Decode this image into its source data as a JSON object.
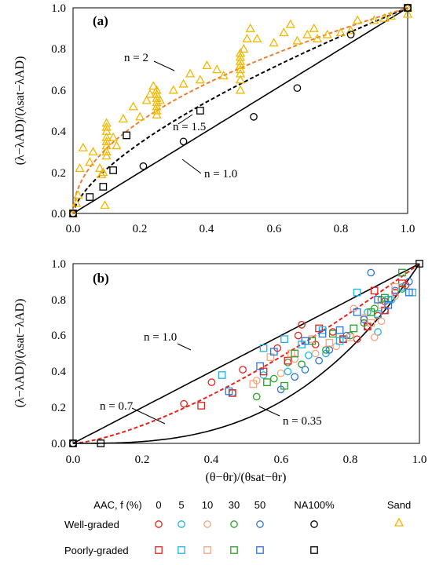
{
  "chart_data": [
    {
      "panel": "(a)",
      "type": "scatter",
      "ylabel": "(λ−λAD)/(λsat−λAD)",
      "xlim": [
        0,
        1
      ],
      "ylim": [
        0,
        1
      ],
      "xticks": [
        "0.0",
        "0.2",
        "0.4",
        "0.6",
        "0.8",
        "1.0"
      ],
      "yticks": [
        "0.0",
        "0.2",
        "0.4",
        "0.6",
        "0.8",
        "1.0"
      ],
      "curves": [
        {
          "n": 1.0,
          "label": "n = 1.0",
          "style": "solid",
          "color": "#000000"
        },
        {
          "n": 1.5,
          "label": "n = 1.5",
          "style": "dashed",
          "color": "#000000"
        },
        {
          "n": 2.0,
          "label": "n = 2",
          "style": "dashed",
          "color": "#ED7D31"
        }
      ],
      "series": [
        {
          "group": "Sand",
          "marker": "triangle",
          "color": "#F2B800",
          "points": [
            [
              0.0,
              0.0
            ],
            [
              0.01,
              0.05
            ],
            [
              0.015,
              0.09
            ],
            [
              0.02,
              0.22
            ],
            [
              0.03,
              0.32
            ],
            [
              0.05,
              0.25
            ],
            [
              0.06,
              0.3
            ],
            [
              0.08,
              0.22
            ],
            [
              0.085,
              0.19
            ],
            [
              0.09,
              0.2
            ],
            [
              0.095,
              0.04
            ],
            [
              0.1,
              0.28
            ],
            [
              0.1,
              0.3
            ],
            [
              0.1,
              0.33
            ],
            [
              0.1,
              0.35
            ],
            [
              0.1,
              0.37
            ],
            [
              0.1,
              0.4
            ],
            [
              0.1,
              0.42
            ],
            [
              0.1,
              0.44
            ],
            [
              0.12,
              0.37
            ],
            [
              0.13,
              0.33
            ],
            [
              0.15,
              0.46
            ],
            [
              0.18,
              0.52
            ],
            [
              0.2,
              0.47
            ],
            [
              0.22,
              0.55
            ],
            [
              0.23,
              0.58
            ],
            [
              0.24,
              0.62
            ],
            [
              0.25,
              0.48
            ],
            [
              0.25,
              0.5
            ],
            [
              0.25,
              0.52
            ],
            [
              0.25,
              0.54
            ],
            [
              0.25,
              0.56
            ],
            [
              0.25,
              0.58
            ],
            [
              0.25,
              0.6
            ],
            [
              0.26,
              0.55
            ],
            [
              0.3,
              0.6
            ],
            [
              0.33,
              0.63
            ],
            [
              0.35,
              0.68
            ],
            [
              0.38,
              0.65
            ],
            [
              0.4,
              0.72
            ],
            [
              0.43,
              0.7
            ],
            [
              0.45,
              0.67
            ],
            [
              0.5,
              0.6
            ],
            [
              0.5,
              0.65
            ],
            [
              0.5,
              0.68
            ],
            [
              0.5,
              0.7
            ],
            [
              0.5,
              0.72
            ],
            [
              0.5,
              0.74
            ],
            [
              0.5,
              0.76
            ],
            [
              0.5,
              0.78
            ],
            [
              0.51,
              0.8
            ],
            [
              0.52,
              0.85
            ],
            [
              0.53,
              0.9
            ],
            [
              0.55,
              0.85
            ],
            [
              0.6,
              0.83
            ],
            [
              0.63,
              0.88
            ],
            [
              0.65,
              0.92
            ],
            [
              0.67,
              0.84
            ],
            [
              0.7,
              0.87
            ],
            [
              0.72,
              0.9
            ],
            [
              0.73,
              0.85
            ],
            [
              0.76,
              0.87
            ],
            [
              0.8,
              0.88
            ],
            [
              0.83,
              0.89
            ],
            [
              0.85,
              0.94
            ],
            [
              0.9,
              0.94
            ],
            [
              0.93,
              0.95
            ],
            [
              0.95,
              0.96
            ],
            [
              1.0,
              0.97
            ],
            [
              1.0,
              1.0
            ]
          ]
        },
        {
          "group": "NA100%",
          "marker": "square",
          "color": "#000000",
          "points": [
            [
              0.0,
              0.0
            ],
            [
              0.05,
              0.08
            ],
            [
              0.09,
              0.13
            ],
            [
              0.12,
              0.21
            ],
            [
              0.16,
              0.38
            ],
            [
              0.38,
              0.5
            ],
            [
              1.0,
              1.0
            ]
          ]
        },
        {
          "group": "NA100%",
          "marker": "circle",
          "color": "#000000",
          "points": [
            [
              0.0,
              0.0
            ],
            [
              0.21,
              0.23
            ],
            [
              0.33,
              0.35
            ],
            [
              0.54,
              0.47
            ],
            [
              0.67,
              0.61
            ],
            [
              0.83,
              0.87
            ],
            [
              1.0,
              1.0
            ]
          ]
        }
      ]
    },
    {
      "panel": "(b)",
      "type": "scatter",
      "xlabel": "(θ−θr)/(θsat−θr)",
      "ylabel": "(λ−λAD)/(λsat−λAD)",
      "xlim": [
        0,
        1
      ],
      "ylim": [
        0,
        1
      ],
      "xticks": [
        "0.0",
        "0.2",
        "0.4",
        "0.6",
        "0.8",
        "1.0"
      ],
      "yticks": [
        "0.0",
        "0.2",
        "0.4",
        "0.6",
        "0.8",
        "1.0"
      ],
      "curves": [
        {
          "n": 1.0,
          "label": "n = 1.0",
          "style": "solid",
          "color": "#000000"
        },
        {
          "n": 0.7,
          "label": "n = 0.7",
          "style": "dashed",
          "color": "#E8221B"
        },
        {
          "n": 0.35,
          "label": "n = 0.35",
          "style": "solid",
          "color": "#000000"
        }
      ],
      "series": [
        {
          "group": "Well-graded AAC 0%",
          "marker": "circle",
          "color": "#E8221B",
          "points": [
            [
              0.32,
              0.22
            ],
            [
              0.4,
              0.34
            ],
            [
              0.49,
              0.41
            ],
            [
              0.59,
              0.53
            ],
            [
              0.65,
              0.6
            ],
            [
              0.66,
              0.66
            ],
            [
              0.7,
              0.55
            ],
            [
              0.75,
              0.62
            ],
            [
              0.82,
              0.58
            ],
            [
              0.85,
              0.65
            ],
            [
              0.88,
              0.71
            ],
            [
              0.9,
              0.79
            ],
            [
              0.93,
              0.84
            ],
            [
              0.96,
              0.88
            ]
          ]
        },
        {
          "group": "Well-graded AAC 5%",
          "marker": "circle",
          "color": "#1EB4E6",
          "points": [
            [
              0.46,
              0.28
            ],
            [
              0.55,
              0.38
            ],
            [
              0.62,
              0.4
            ],
            [
              0.68,
              0.49
            ],
            [
              0.73,
              0.5
            ],
            [
              0.78,
              0.58
            ],
            [
              0.85,
              0.73
            ],
            [
              0.88,
              0.62
            ],
            [
              0.92,
              0.8
            ],
            [
              0.95,
              0.87
            ]
          ]
        },
        {
          "group": "Well-graded AAC 10%",
          "marker": "circle",
          "color": "#F4A582",
          "points": [
            [
              0.53,
              0.35
            ],
            [
              0.6,
              0.39
            ],
            [
              0.64,
              0.47
            ],
            [
              0.7,
              0.5
            ],
            [
              0.76,
              0.54
            ],
            [
              0.81,
              0.75
            ],
            [
              0.84,
              0.7
            ],
            [
              0.87,
              0.59
            ],
            [
              0.89,
              0.68
            ],
            [
              0.93,
              0.82
            ]
          ]
        },
        {
          "group": "Well-graded AAC 30%",
          "marker": "circle",
          "color": "#2CA02C",
          "points": [
            [
              0.53,
              0.26
            ],
            [
              0.58,
              0.36
            ],
            [
              0.62,
              0.45
            ],
            [
              0.66,
              0.44
            ],
            [
              0.73,
              0.52
            ],
            [
              0.8,
              0.6
            ],
            [
              0.84,
              0.67
            ],
            [
              0.87,
              0.75
            ],
            [
              0.89,
              0.8
            ],
            [
              0.95,
              0.86
            ]
          ]
        },
        {
          "group": "Well-graded AAC 50%",
          "marker": "circle",
          "color": "#2E75D6",
          "points": [
            [
              0.6,
              0.3
            ],
            [
              0.64,
              0.37
            ],
            [
              0.67,
              0.41
            ],
            [
              0.71,
              0.46
            ],
            [
              0.74,
              0.52
            ],
            [
              0.79,
              0.6
            ],
            [
              0.84,
              0.69
            ],
            [
              0.86,
              0.95
            ],
            [
              0.9,
              0.74
            ],
            [
              0.93,
              0.85
            ],
            [
              0.97,
              0.9
            ]
          ]
        },
        {
          "group": "Poorly-graded AAC 0%",
          "marker": "square",
          "color": "#E8221B",
          "points": [
            [
              0.37,
              0.21
            ],
            [
              0.46,
              0.28
            ],
            [
              0.55,
              0.4
            ],
            [
              0.62,
              0.46
            ],
            [
              0.71,
              0.64
            ],
            [
              0.78,
              0.58
            ],
            [
              0.85,
              0.65
            ],
            [
              0.87,
              0.85
            ],
            [
              0.9,
              0.74
            ],
            [
              0.95,
              0.89
            ]
          ]
        },
        {
          "group": "Poorly-graded AAC 5%",
          "marker": "square",
          "color": "#1EB4E6",
          "points": [
            [
              0.43,
              0.38
            ],
            [
              0.55,
              0.53
            ],
            [
              0.61,
              0.58
            ],
            [
              0.66,
              0.55
            ],
            [
              0.72,
              0.63
            ],
            [
              0.77,
              0.57
            ],
            [
              0.82,
              0.84
            ],
            [
              0.88,
              0.72
            ],
            [
              0.91,
              0.8
            ],
            [
              0.98,
              0.84
            ]
          ]
        },
        {
          "group": "Poorly-graded AAC 10%",
          "marker": "square",
          "color": "#F4A582",
          "points": [
            [
              0.52,
              0.33
            ],
            [
              0.57,
              0.48
            ],
            [
              0.63,
              0.5
            ],
            [
              0.69,
              0.58
            ],
            [
              0.74,
              0.56
            ],
            [
              0.8,
              0.59
            ],
            [
              0.86,
              0.67
            ],
            [
              0.89,
              0.77
            ],
            [
              0.93,
              0.87
            ]
          ]
        },
        {
          "group": "Poorly-graded AAC 30%",
          "marker": "square",
          "color": "#2CA02C",
          "points": [
            [
              0.56,
              0.34
            ],
            [
              0.61,
              0.32
            ],
            [
              0.64,
              0.5
            ],
            [
              0.69,
              0.57
            ],
            [
              0.75,
              0.61
            ],
            [
              0.81,
              0.64
            ],
            [
              0.86,
              0.73
            ],
            [
              0.9,
              0.81
            ],
            [
              0.95,
              0.95
            ]
          ]
        },
        {
          "group": "Poorly-graded AAC 50%",
          "marker": "square",
          "color": "#2E75D6",
          "points": [
            [
              0.45,
              0.29
            ],
            [
              0.54,
              0.43
            ],
            [
              0.58,
              0.51
            ],
            [
              0.67,
              0.57
            ],
            [
              0.72,
              0.61
            ],
            [
              0.77,
              0.63
            ],
            [
              0.82,
              0.73
            ],
            [
              0.88,
              0.8
            ],
            [
              0.91,
              0.77
            ],
            [
              0.97,
              0.84
            ]
          ]
        },
        {
          "group": "NA100%",
          "marker": "square",
          "color": "#000000",
          "points": [
            [
              0.0,
              0.0
            ],
            [
              0.08,
              0.0
            ],
            [
              1.0,
              1.0
            ]
          ]
        },
        {
          "group": "NA100%",
          "marker": "circle",
          "color": "#000000",
          "points": [
            [
              0.0,
              0.0
            ]
          ]
        }
      ]
    }
  ],
  "legend": {
    "header": "AAC, f (%)",
    "columns": [
      "0",
      "5",
      "10",
      "30",
      "50",
      "NA100%"
    ],
    "column_colors": [
      "#E8221B",
      "#1EB4E6",
      "#F4A582",
      "#2CA02C",
      "#2E75D6",
      "#000000"
    ],
    "rows": [
      {
        "label": "Well-graded",
        "marker": "circle"
      },
      {
        "label": "Poorly-graded",
        "marker": "square"
      }
    ],
    "sand": {
      "label": "Sand",
      "marker": "triangle",
      "color": "#F2B800"
    }
  }
}
